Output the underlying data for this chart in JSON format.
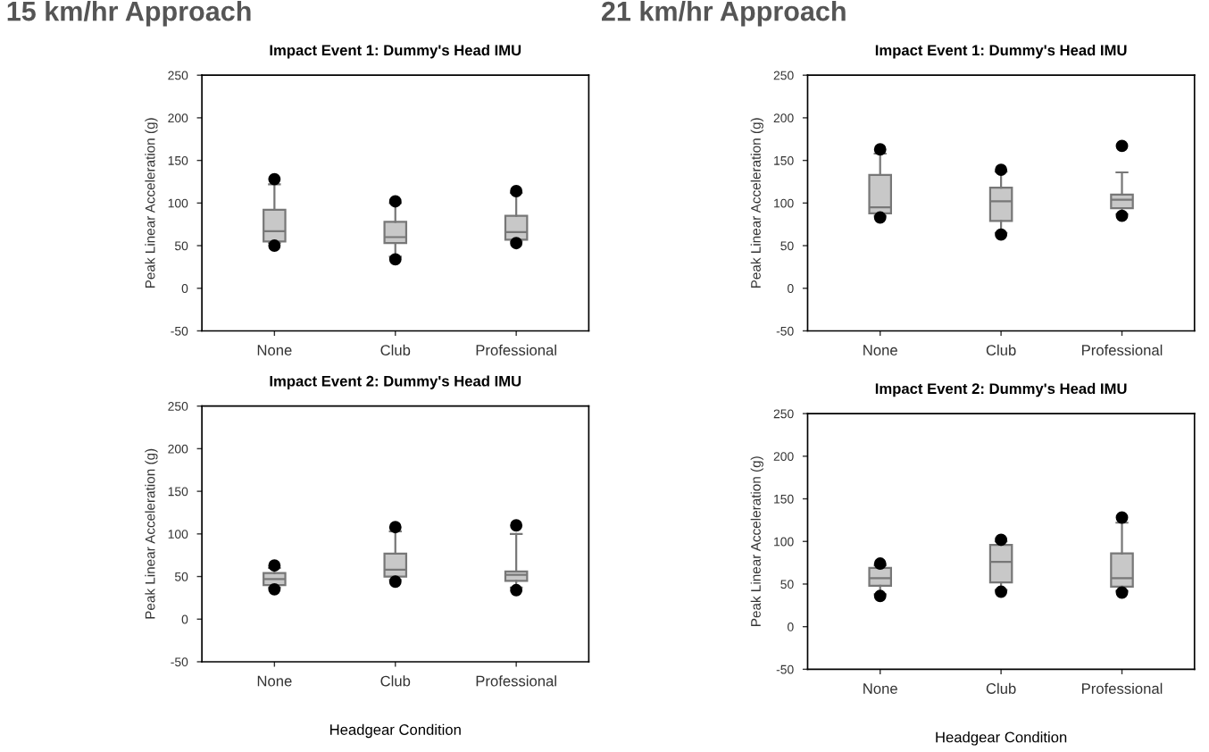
{
  "chart_data": [
    {
      "type": "box",
      "title": "Impact Event 1: Dummy's Head IMU",
      "annotations": [
        "15 km/hr Approach"
      ],
      "ylabel": "Peak Linear Acceleration (g)",
      "categories": [
        "None",
        "Club",
        "Professional"
      ],
      "color": "#c8c8c8",
      "ylim": [
        -50,
        250
      ],
      "yticks": [
        -50,
        0,
        50,
        100,
        150,
        200,
        250
      ],
      "grid": false,
      "legend": false,
      "boxes": [
        {
          "low": 53,
          "q1": 55,
          "median": 67,
          "q3": 92,
          "high": 122,
          "outliers": [
            50,
            128
          ]
        },
        {
          "low": 37,
          "q1": 53,
          "median": 60,
          "q3": 78,
          "high": 100,
          "outliers": [
            34,
            102
          ]
        },
        {
          "low": 55,
          "q1": 57,
          "median": 66,
          "q3": 85,
          "high": 112,
          "outliers": [
            53,
            114
          ]
        }
      ]
    },
    {
      "type": "box",
      "title": "Impact Event 2: Dummy's Head IMU",
      "xlabel": "Headgear Condition",
      "ylabel": "Peak Linear Acceleration (g)",
      "categories": [
        "None",
        "Club",
        "Professional"
      ],
      "color": "#c8c8c8",
      "ylim": [
        -50,
        250
      ],
      "yticks": [
        -50,
        0,
        50,
        100,
        150,
        200,
        250
      ],
      "grid": false,
      "legend": false,
      "boxes": [
        {
          "low": 37,
          "q1": 40,
          "median": 47,
          "q3": 54,
          "high": 60,
          "outliers": [
            35,
            63
          ]
        },
        {
          "low": 46,
          "q1": 50,
          "median": 58,
          "q3": 77,
          "high": 103,
          "outliers": [
            44,
            108
          ]
        },
        {
          "low": 37,
          "q1": 45,
          "median": 52,
          "q3": 56,
          "high": 100,
          "outliers": [
            34,
            110
          ]
        }
      ]
    },
    {
      "type": "box",
      "title": "Impact Event 1: Dummy's Head IMU",
      "annotations": [
        "21 km/hr Approach"
      ],
      "ylabel": "Peak Linear Acceleration (g)",
      "categories": [
        "None",
        "Club",
        "Professional"
      ],
      "color": "#c8c8c8",
      "ylim": [
        -50,
        250
      ],
      "yticks": [
        -50,
        0,
        50,
        100,
        150,
        200,
        250
      ],
      "grid": false,
      "legend": false,
      "boxes": [
        {
          "low": 85,
          "q1": 88,
          "median": 95,
          "q3": 133,
          "high": 158,
          "outliers": [
            83,
            163
          ]
        },
        {
          "low": 65,
          "q1": 79,
          "median": 102,
          "q3": 118,
          "high": 137,
          "outliers": [
            63,
            139
          ]
        },
        {
          "low": 87,
          "q1": 94,
          "median": 104,
          "q3": 110,
          "high": 136,
          "outliers": [
            85,
            167
          ]
        }
      ]
    },
    {
      "type": "box",
      "title": "Impact Event 2: Dummy's Head IMU",
      "xlabel": "Headgear Condition",
      "ylabel": "Peak Linear Acceleration (g)",
      "categories": [
        "None",
        "Club",
        "Professional"
      ],
      "color": "#c8c8c8",
      "ylim": [
        -50,
        250
      ],
      "yticks": [
        -50,
        0,
        50,
        100,
        150,
        200,
        250
      ],
      "grid": false,
      "legend": false,
      "boxes": [
        {
          "low": 38,
          "q1": 48,
          "median": 57,
          "q3": 69,
          "high": 72,
          "outliers": [
            36,
            74
          ]
        },
        {
          "low": 43,
          "q1": 52,
          "median": 76,
          "q3": 96,
          "high": 100,
          "outliers": [
            41,
            102
          ]
        },
        {
          "low": 42,
          "q1": 47,
          "median": 57,
          "q3": 86,
          "high": 122,
          "outliers": [
            40,
            128
          ]
        }
      ]
    }
  ]
}
